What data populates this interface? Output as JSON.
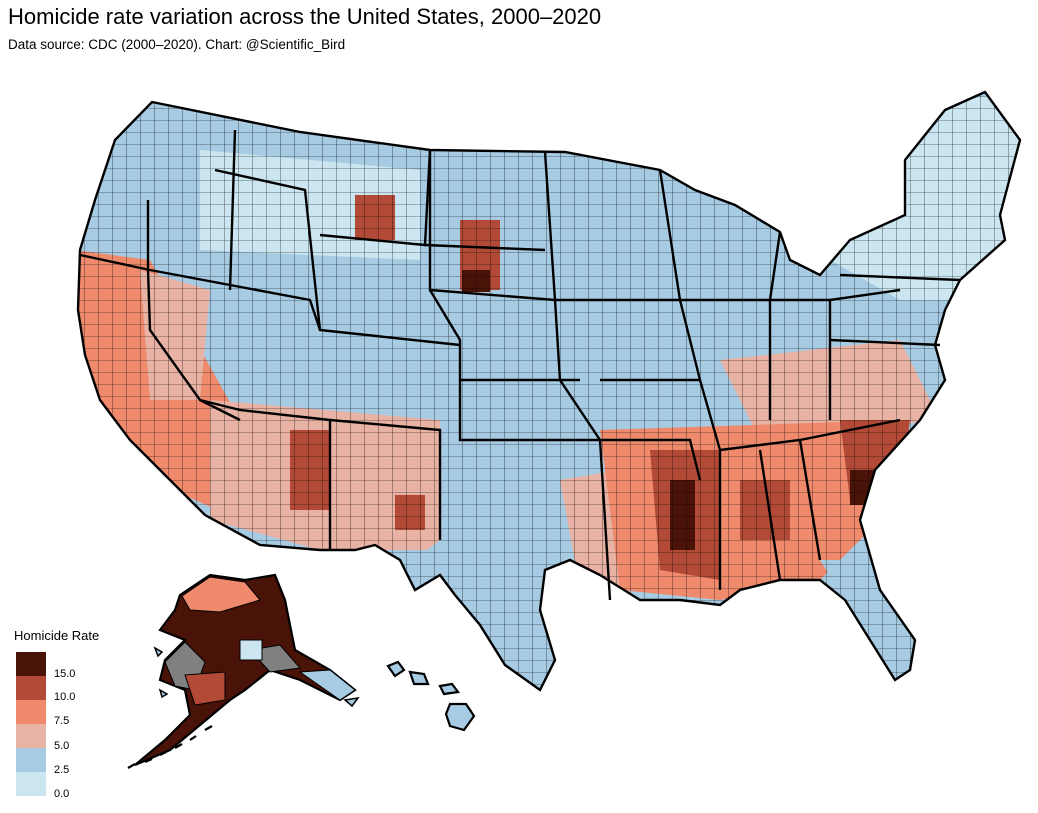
{
  "header": {
    "title": "Homicide rate variation across the United States, 2000–2020",
    "subtitle": "Data source: CDC (2000–2020). Chart: @Scientific_Bird"
  },
  "legend": {
    "title": "Homicide Rate",
    "bins": [
      {
        "color": "#4a1308",
        "label": "15.0"
      },
      {
        "color": "#b24a37",
        "label": "10.0"
      },
      {
        "color": "#ef8a6c",
        "label": "7.5"
      },
      {
        "color": "#e8b2a5",
        "label": "5.0"
      },
      {
        "color": "#a7cbe3",
        "label": "2.5"
      },
      {
        "color": "#cbe6f0",
        "label": "0.0"
      }
    ],
    "na_color": "#808080"
  },
  "chart_data": {
    "type": "choropleth",
    "region": "United States counties",
    "variable": "Homicide Rate",
    "scale_breaks": [
      0.0,
      2.5,
      5.0,
      7.5,
      10.0,
      15.0
    ]
  }
}
